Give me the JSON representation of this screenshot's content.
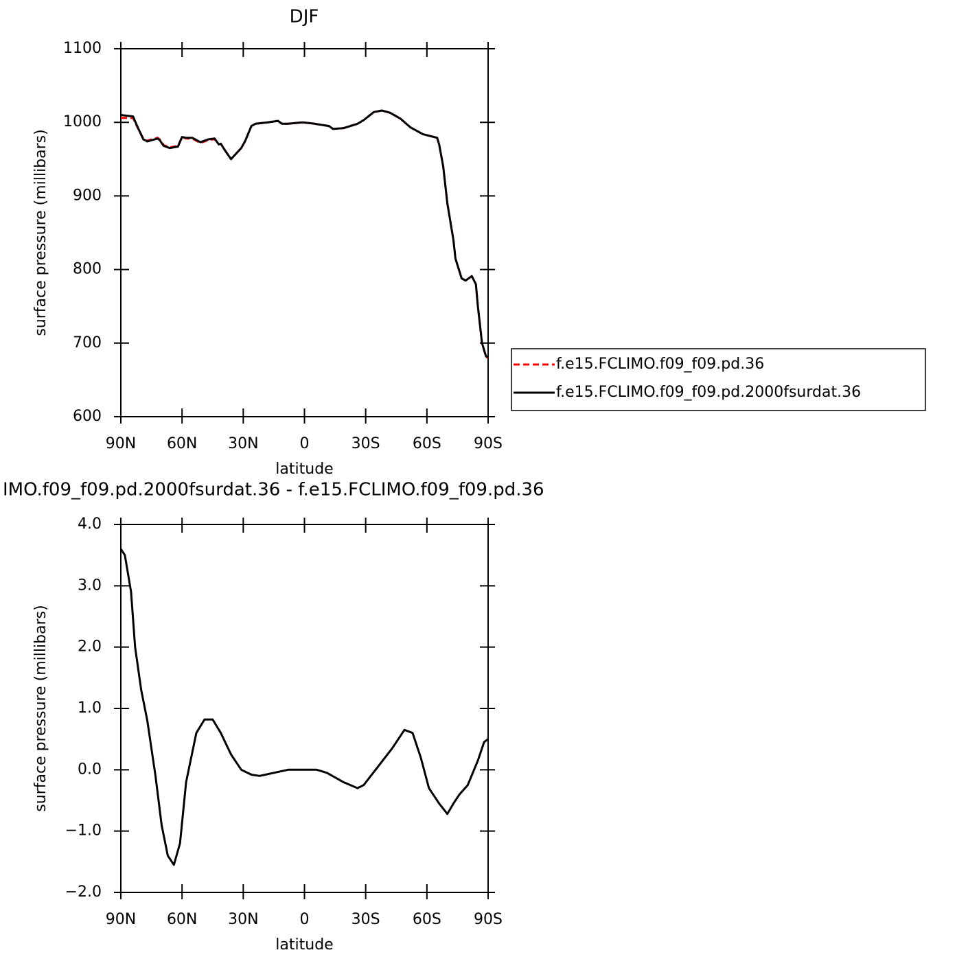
{
  "chart_data": [
    {
      "type": "line",
      "title": "DJF",
      "xlabel": "latitude",
      "ylabel": "surface pressure (millibars)",
      "x": [
        90,
        84,
        82,
        79,
        77,
        72,
        71,
        69,
        66,
        62,
        60,
        58,
        55,
        51,
        47,
        44,
        42,
        41,
        39,
        36,
        31,
        29,
        26,
        24,
        21,
        18,
        13,
        11,
        8,
        1,
        -5,
        -12,
        -14,
        -19,
        -26,
        -29,
        -34,
        -38,
        -42,
        -47,
        -52,
        -58,
        -65,
        -66,
        -68,
        -70,
        -73,
        -74,
        -77,
        -79,
        -82,
        -84,
        -85,
        -87,
        -89,
        -90
      ],
      "series": [
        {
          "name": "f.e15.FCLIMO.f09_f09.pd.36",
          "color": "#ff0000",
          "line_style": "dashed",
          "values": [
            1006,
            1006,
            994,
            978,
            975,
            979,
            977,
            969,
            966,
            968,
            980,
            978,
            978,
            972,
            976,
            977,
            970,
            971,
            962,
            950,
            965,
            975,
            995,
            998,
            999,
            1000,
            1002,
            998,
            998,
            1000,
            998,
            995,
            991,
            992,
            998,
            1003,
            1014,
            1016,
            1013,
            1005,
            993,
            984,
            979,
            970,
            940,
            890,
            840,
            815,
            788,
            785,
            791,
            780,
            750,
            700,
            681,
            680
          ]
        },
        {
          "name": "f.e15.FCLIMO.f09_f09.pd.2000fsurdat.36",
          "color": "#000000",
          "line_style": "solid",
          "values": [
            1010,
            1008,
            995,
            977,
            974,
            978,
            976,
            968,
            965,
            967,
            980,
            979,
            979,
            973,
            977,
            978,
            970,
            971,
            962,
            950,
            965,
            975,
            995,
            998,
            999,
            1000,
            1002,
            998,
            998,
            1000,
            998,
            995,
            991,
            992,
            998,
            1003,
            1014,
            1016,
            1013,
            1005,
            993,
            984,
            979,
            970,
            940,
            890,
            840,
            815,
            788,
            785,
            791,
            780,
            750,
            700,
            682,
            681
          ]
        }
      ],
      "xlim": [
        90,
        -90
      ],
      "xticks": [
        {
          "value": 90,
          "label": "90N"
        },
        {
          "value": 60,
          "label": "60N"
        },
        {
          "value": 30,
          "label": "30N"
        },
        0,
        {
          "value": -30,
          "label": "30S"
        },
        {
          "value": -60,
          "label": "60S"
        },
        {
          "value": -90,
          "label": "90S"
        }
      ],
      "ylim": [
        600,
        1100
      ],
      "yticks": [
        600,
        700,
        800,
        900,
        1000,
        1100
      ],
      "grid": false,
      "legend": "right"
    },
    {
      "type": "line",
      "title": "IMO.f09_f09.pd.2000fsurdat.36 - f.e15.FCLIMO.f09_f09.pd.36",
      "xlabel": "latitude",
      "ylabel": "surface pressure (millibars)",
      "x": [
        90,
        88,
        85,
        83,
        80,
        77,
        73,
        70,
        67,
        64,
        61,
        58,
        53,
        49,
        45,
        41,
        36,
        31,
        26,
        22,
        15,
        8,
        1,
        -6,
        -11,
        -19,
        -26,
        -29,
        -36,
        -43,
        -49,
        -53,
        -57,
        -61,
        -66,
        -70,
        -73,
        -76,
        -80,
        -85,
        -88,
        -90
      ],
      "series": [
        {
          "color": "#000000",
          "line_style": "solid",
          "values": [
            3.6,
            3.5,
            2.9,
            2.0,
            1.3,
            0.8,
            -0.1,
            -0.9,
            -1.4,
            -1.55,
            -1.2,
            -0.2,
            0.6,
            0.82,
            0.82,
            0.6,
            0.25,
            0.0,
            -0.08,
            -0.1,
            -0.05,
            0.0,
            0.0,
            0.0,
            -0.05,
            -0.2,
            -0.3,
            -0.25,
            0.05,
            0.35,
            0.65,
            0.6,
            0.2,
            -0.3,
            -0.55,
            -0.72,
            -0.55,
            -0.4,
            -0.25,
            0.15,
            0.45,
            0.5
          ]
        }
      ],
      "xlim": [
        90,
        -90
      ],
      "xticks": [
        {
          "value": 90,
          "label": "90N"
        },
        {
          "value": 60,
          "label": "60N"
        },
        {
          "value": 30,
          "label": "30N"
        },
        0,
        {
          "value": -30,
          "label": "30S"
        },
        {
          "value": -60,
          "label": "60S"
        },
        {
          "value": -90,
          "label": "90S"
        }
      ],
      "ylim": [
        -2,
        4
      ],
      "yticks": [
        {
          "value": -2,
          "label": "−2.0"
        },
        {
          "value": -1,
          "label": "−1.0"
        },
        {
          "value": 0,
          "label": "0.0"
        },
        {
          "value": 1,
          "label": "1.0"
        },
        {
          "value": 2,
          "label": "2.0"
        },
        {
          "value": 3,
          "label": "3.0"
        },
        {
          "value": 4,
          "label": "4.0"
        }
      ],
      "grid": false
    }
  ]
}
